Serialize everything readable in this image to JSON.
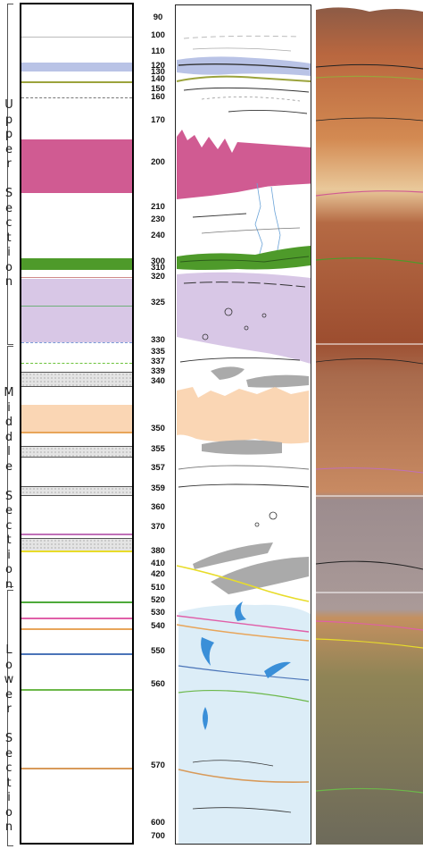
{
  "sections": {
    "upper": "Upper Section",
    "middle": "Middle Section",
    "lower": "Lower Section"
  },
  "depths": [
    "90",
    "100",
    "110",
    "120",
    "130",
    "140",
    "150",
    "160",
    "170",
    "200",
    "210",
    "230",
    "240",
    "300",
    "310",
    "320",
    "325",
    "330",
    "335",
    "337",
    "339",
    "340",
    "350",
    "355",
    "357",
    "359",
    "360",
    "370",
    "380",
    "410",
    "420",
    "510",
    "520",
    "530",
    "540",
    "550",
    "560",
    "570",
    "600",
    "700"
  ],
  "colors": {
    "lavender_blue": "#b9c3e6",
    "olive": "#9ba33c",
    "magenta": "#d05b92",
    "green": "#4e9a2a",
    "lilac": "#d8c7e6",
    "peach": "#fad6b4",
    "pink": "#e05fa8",
    "orange": "#e8a55a",
    "blue": "#4a74b8",
    "light_blue": "#dcedf7",
    "water_blue": "#3a8fd8",
    "yellow": "#e8dc2a",
    "stipple": "#d6d6d6"
  }
}
